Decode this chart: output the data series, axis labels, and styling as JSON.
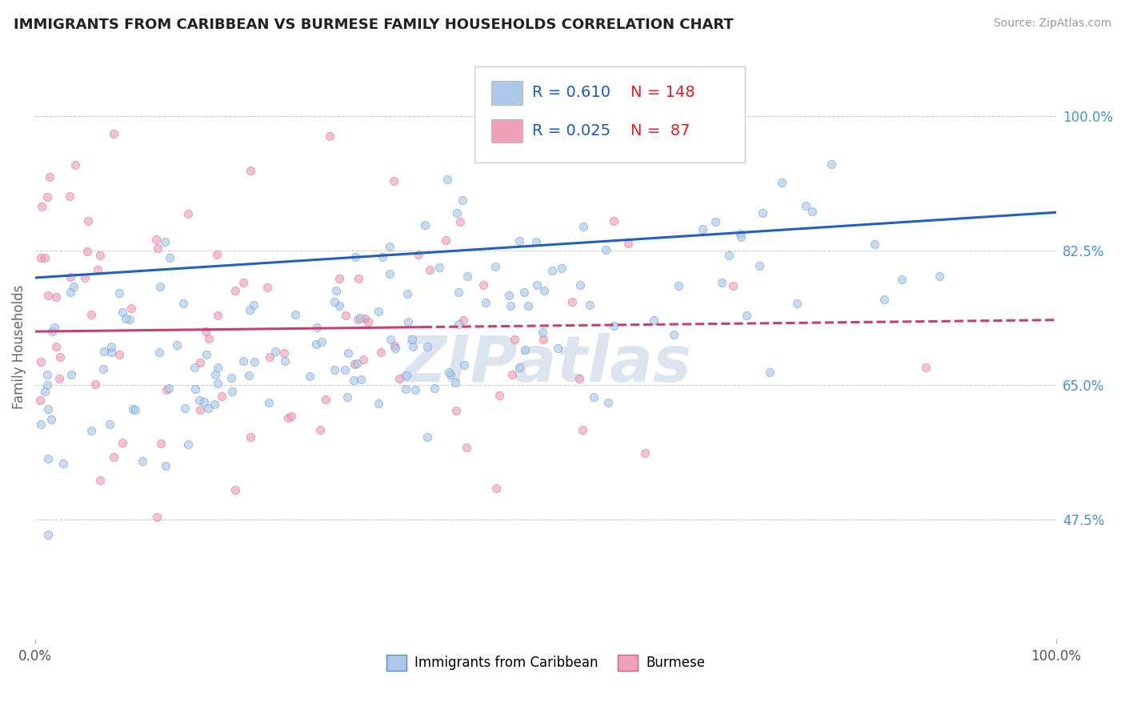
{
  "title": "IMMIGRANTS FROM CARIBBEAN VS BURMESE FAMILY HOUSEHOLDS CORRELATION CHART",
  "source": "Source: ZipAtlas.com",
  "ylabel": "Family Households",
  "xmin": 0.0,
  "xmax": 1.0,
  "ymin": 0.32,
  "ymax": 1.08,
  "yticks": [
    0.475,
    0.65,
    0.825,
    1.0
  ],
  "ytick_labels": [
    "47.5%",
    "65.0%",
    "82.5%",
    "100.0%"
  ],
  "xtick_labels": [
    "0.0%",
    "100.0%"
  ],
  "series": [
    {
      "name": "Immigrants from Caribbean",
      "R": 0.61,
      "N": 148,
      "color": "#adc8e8",
      "edge_color": "#5090d0",
      "line_color": "#2060c0",
      "line_solid": true,
      "alpha": 0.65
    },
    {
      "name": "Burmese",
      "R": 0.025,
      "N": 87,
      "color": "#f0a0b8",
      "edge_color": "#d06080",
      "line_color": "#c84070",
      "line_solid": false,
      "alpha": 0.65
    }
  ],
  "legend_R": [
    0.61,
    0.025
  ],
  "legend_N": [
    148,
    87
  ],
  "grid_color": "#cccccc",
  "background_color": "#ffffff",
  "watermark": "ZIPatlas",
  "watermark_color": "#c5d5e5",
  "blue_line_y0": 0.79,
  "blue_line_y1": 0.875,
  "pink_line_y0": 0.72,
  "pink_line_y1": 0.735
}
